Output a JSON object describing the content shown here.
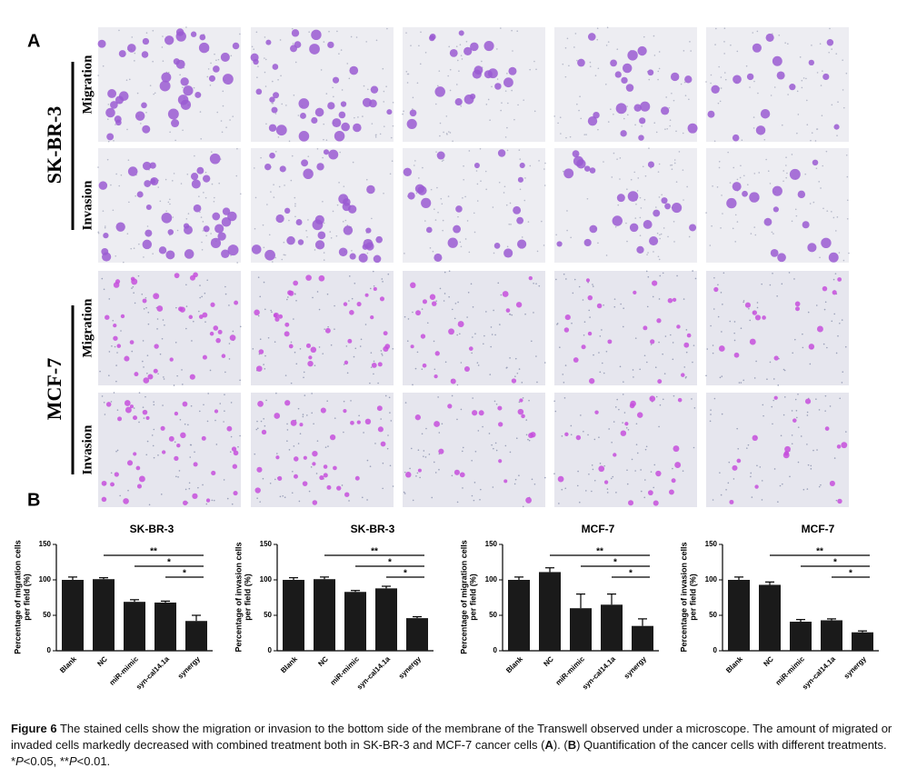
{
  "figure": {
    "panel_a": {
      "label": "A",
      "groups": [
        {
          "name": "SK-BR-3",
          "rows": [
            "Migration",
            "Invasion"
          ]
        },
        {
          "name": "MCF-7",
          "rows": [
            "Migration",
            "Invasion"
          ]
        }
      ]
    },
    "panel_b": {
      "label": "B"
    }
  },
  "chart_data": [
    {
      "type": "bar",
      "title": "SK-BR-3",
      "ylabel": [
        "Percentage of migration cells",
        "per field (%)"
      ],
      "categories": [
        "Blank",
        "NC",
        "miR-mimic",
        "syn-cal14.1a",
        "synergy"
      ],
      "values": [
        100,
        101,
        69,
        68,
        42
      ],
      "errors": [
        4,
        2,
        3,
        2,
        8
      ],
      "color": "#1a1a1a",
      "ylim": [
        0,
        150
      ],
      "yticks": [
        0,
        50,
        100,
        150
      ],
      "annotations": [
        {
          "text": "**",
          "span": [
            "NC",
            "synergy"
          ]
        },
        {
          "text": "*",
          "span": [
            "miR-mimic",
            "synergy"
          ]
        },
        {
          "text": "*",
          "span": [
            "syn-cal14.1a",
            "synergy"
          ]
        }
      ]
    },
    {
      "type": "bar",
      "title": "SK-BR-3",
      "ylabel": [
        "Percentage of invasion cells",
        "per field (%)"
      ],
      "categories": [
        "Blank",
        "NC",
        "miR-mimic",
        "syn-cal14.1a",
        "synergy"
      ],
      "values": [
        100,
        101,
        83,
        88,
        46
      ],
      "errors": [
        3,
        3,
        2,
        3,
        2
      ],
      "color": "#1a1a1a",
      "ylim": [
        0,
        150
      ],
      "yticks": [
        0,
        50,
        100,
        150
      ],
      "annotations": [
        {
          "text": "**",
          "span": [
            "NC",
            "synergy"
          ]
        },
        {
          "text": "*",
          "span": [
            "miR-mimic",
            "synergy"
          ]
        },
        {
          "text": "*",
          "span": [
            "syn-cal14.1a",
            "synergy"
          ]
        }
      ]
    },
    {
      "type": "bar",
      "title": "MCF-7",
      "ylabel": [
        "Percentage of migration cells",
        "per field (%)"
      ],
      "categories": [
        "Blank",
        "NC",
        "miR-mimic",
        "syn-cal14.1a",
        "synergy"
      ],
      "values": [
        100,
        111,
        60,
        65,
        35
      ],
      "errors": [
        4,
        6,
        20,
        15,
        10
      ],
      "color": "#1a1a1a",
      "ylim": [
        0,
        150
      ],
      "yticks": [
        0,
        50,
        100,
        150
      ],
      "annotations": [
        {
          "text": "**",
          "span": [
            "NC",
            "synergy"
          ]
        },
        {
          "text": "*",
          "span": [
            "miR-mimic",
            "synergy"
          ]
        },
        {
          "text": "*",
          "span": [
            "syn-cal14.1a",
            "synergy"
          ]
        }
      ]
    },
    {
      "type": "bar",
      "title": "MCF-7",
      "ylabel": [
        "Percentage of invasion cells",
        "per field (%)"
      ],
      "categories": [
        "Blank",
        "NC",
        "miR-mimic",
        "syn-cal14.1a",
        "synergy"
      ],
      "values": [
        100,
        93,
        41,
        43,
        26
      ],
      "errors": [
        4,
        4,
        3,
        2,
        2
      ],
      "color": "#1a1a1a",
      "ylim": [
        0,
        150
      ],
      "yticks": [
        0,
        50,
        100,
        150
      ],
      "annotations": [
        {
          "text": "**",
          "span": [
            "NC",
            "synergy"
          ]
        },
        {
          "text": "*",
          "span": [
            "miR-mimic",
            "synergy"
          ]
        },
        {
          "text": "*",
          "span": [
            "syn-cal14.1a",
            "synergy"
          ]
        }
      ]
    }
  ],
  "caption": {
    "label": "Figure 6",
    "parts": [
      "The stained cells show the migration or invasion to the bottom side of the membrane of the Transwell observed under a microscope. The amount of migrated or invaded cells markedly decreased with combined treatment both in SK-BR-3 and MCF-7 cancer cells (",
      "A",
      "). (",
      "B",
      ") Quantification of the cancer cells with different treatments. *",
      "P",
      "<0.05, **",
      "P",
      "<0.01."
    ]
  }
}
